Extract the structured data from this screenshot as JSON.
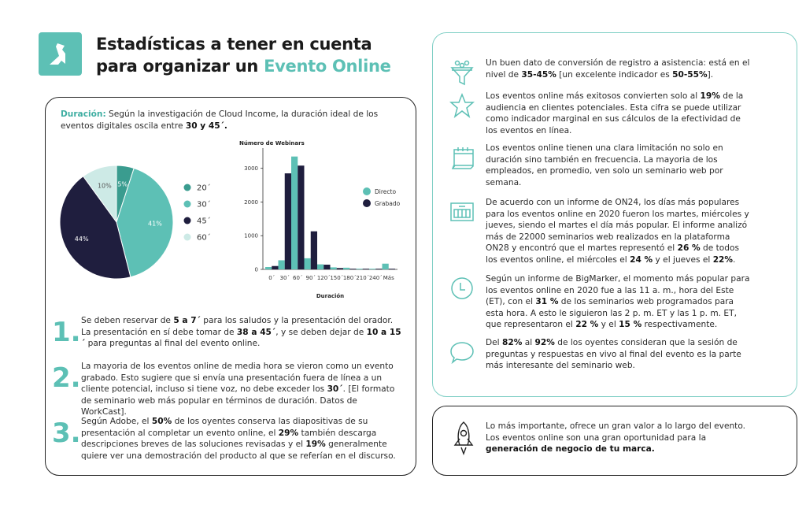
{
  "header": {
    "title_line1": "Estadísticas a tener en cuenta",
    "title_line2_prefix": "para organizar un ",
    "title_line2_highlight": "Evento Online"
  },
  "colors": {
    "teal": "#5dc0b5",
    "dark_teal": "#3a9c8f",
    "navy": "#1f1e3e",
    "pale": "#cdeae6"
  },
  "intro": {
    "label": "Duración:",
    "segments": [
      {
        "t": " Según la investigación de Cloud Income, la duración ideal de los eventos digitales oscila entre "
      },
      {
        "t": "30 y 45´.",
        "b": true
      }
    ]
  },
  "chart_data": [
    {
      "type": "pie",
      "slices": [
        {
          "label": "20´",
          "value": 5,
          "text": "5%"
        },
        {
          "label": "30´",
          "value": 41,
          "text": "41%"
        },
        {
          "label": "45´",
          "value": 44,
          "text": "44%"
        },
        {
          "label": "60´",
          "value": 10,
          "text": "10%"
        }
      ],
      "legend": "right"
    },
    {
      "type": "bar",
      "title": "Número de Webinars",
      "xlabel": "Duración",
      "ylabel": "Número de Webinars",
      "categories": [
        "0´",
        "30´",
        "60´",
        "90´",
        "120´",
        "150´",
        "180´",
        "210´",
        "240´",
        "Más"
      ],
      "series": [
        {
          "name": "Directo",
          "values": [
            70,
            270,
            3350,
            330,
            150,
            60,
            50,
            20,
            20,
            170
          ]
        },
        {
          "name": "Grabado",
          "values": [
            100,
            2850,
            3080,
            1130,
            140,
            40,
            20,
            20,
            20,
            20
          ]
        }
      ],
      "yticks": [
        0,
        1000,
        2000,
        3000
      ],
      "ylim": [
        0,
        3600
      ],
      "legend": "right"
    }
  ],
  "items": [
    {
      "num": "1.",
      "segments": [
        {
          "t": "Se deben reservar de "
        },
        {
          "t": "5 a 7´",
          "b": true
        },
        {
          "t": " para los saludos y la presentación del orador. La presentación en sí debe tomar de "
        },
        {
          "t": "38 a 45´",
          "b": true
        },
        {
          "t": ", y se deben dejar de "
        },
        {
          "t": "10 a 15´",
          "b": true
        },
        {
          "t": " para preguntas al final del evento online."
        }
      ]
    },
    {
      "num": "2.",
      "segments": [
        {
          "t": "La mayoria de los eventos online de media hora se vieron como un evento grabado. Esto sugiere que si envía una presentación fuera de línea a un cliente potencial, incluso si tiene voz, no debe exceder los "
        },
        {
          "t": "30´",
          "b": true
        },
        {
          "t": ". [El formato de seminario web más popular en términos de duración. Datos de WorkCast]."
        }
      ]
    },
    {
      "num": "3.",
      "segments": [
        {
          "t": "Según Adobe, el "
        },
        {
          "t": "50%",
          "b": true
        },
        {
          "t": " de los oyentes conserva las diapositivas de su presentación al completar un evento online, el "
        },
        {
          "t": "29%",
          "b": true
        },
        {
          "t": " también descarga descripciones breves de las soluciones revisadas y el "
        },
        {
          "t": "19%",
          "b": true
        },
        {
          "t": " generalmente quiere ver una demostración del producto al que se referían en el discurso."
        }
      ]
    }
  ],
  "stats": [
    {
      "icon": "funnel-icon",
      "segments": [
        {
          "t": "Un buen dato de conversión de registro a asistencia: está en el nivel de "
        },
        {
          "t": "35-45%",
          "b": true
        },
        {
          "t": " [un excelente indicador es "
        },
        {
          "t": "50-55%",
          "b": true
        },
        {
          "t": "]."
        }
      ]
    },
    {
      "icon": "star-icon",
      "segments": [
        {
          "t": "Los eventos online más exitosos convierten solo al "
        },
        {
          "t": "19%",
          "b": true
        },
        {
          "t": " de la audiencia en clientes potenciales. Esta cifra se puede utilizar como indicador marginal en sus cálculos de la efectividad de los eventos en línea."
        }
      ]
    },
    {
      "icon": "calendar-icon",
      "segments": [
        {
          "t": "Los eventos online tienen una clara limitación no solo en duración sino también en frecuencia. La mayoria de los empleados, en promedio, ven solo un seminario web por semana."
        }
      ]
    },
    {
      "icon": "week-calendar-icon",
      "segments": [
        {
          "t": "De acuerdo con un informe de ON24, los días más populares para los eventos online en 2020 fueron los martes, miércoles y jueves, siendo el martes el día más popular. El informe analizó más de 22000 seminarios web realizados en la plataforma ON28 y encontró que el martes representó el "
        },
        {
          "t": "26 %",
          "b": true
        },
        {
          "t": " de todos los eventos online, el miércoles el "
        },
        {
          "t": "24 %",
          "b": true
        },
        {
          "t": " y el jueves el "
        },
        {
          "t": "22%",
          "b": true
        },
        {
          "t": "."
        }
      ]
    },
    {
      "icon": "clock-icon",
      "segments": [
        {
          "t": "Según un informe de BigMarker, el momento más popular para los eventos online en 2020 fue a las 11 a. m., hora del Este (ET), con el "
        },
        {
          "t": "31 %",
          "b": true
        },
        {
          "t": " de los seminarios web programados para esta hora. A esto le siguieron las 2 p. m. ET y las 1 p. m. ET, que representaron el "
        },
        {
          "t": "22 %",
          "b": true
        },
        {
          "t": " y el "
        },
        {
          "t": "15 %",
          "b": true
        },
        {
          "t": " respectivamente."
        }
      ]
    },
    {
      "icon": "chat-bubble-icon",
      "segments": [
        {
          "t": "Del "
        },
        {
          "t": "82%",
          "b": true
        },
        {
          "t": " al "
        },
        {
          "t": "92%",
          "b": true
        },
        {
          "t": " de los oyentes consideran que la sesión de preguntas y respuestas en vivo al final del evento es la parte más interesante del seminario web."
        }
      ]
    }
  ],
  "footer": {
    "icon": "rocket-icon",
    "segments": [
      {
        "t": "Lo más importante, ofrece un gran valor a lo largo del evento. Los eventos online son una gran oportunidad para la "
      },
      {
        "t": "generación de negocio de tu marca.",
        "b": true
      }
    ]
  }
}
